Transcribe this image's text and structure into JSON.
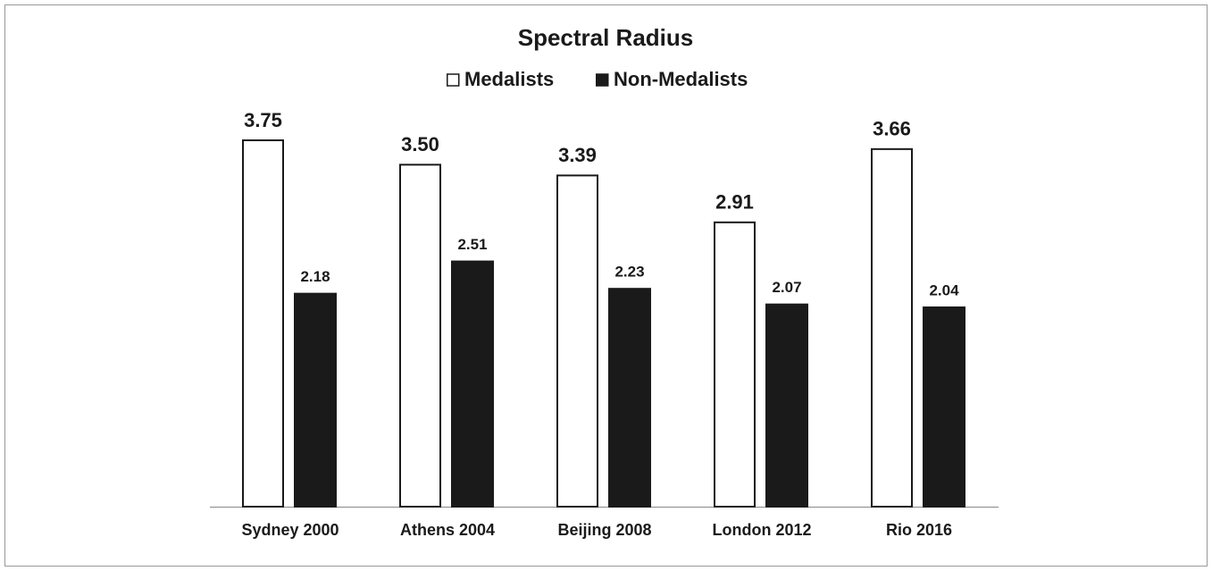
{
  "chart_data": {
    "type": "bar",
    "title": "Spectral Radius",
    "categories": [
      "Sydney 2000",
      "Athens 2004",
      "Beijing 2008",
      "London 2012",
      "Rio 2016"
    ],
    "series": [
      {
        "name": "Medalists",
        "color": "#ffffff",
        "values": [
          3.75,
          3.5,
          3.39,
          2.91,
          3.66
        ],
        "value_labels": [
          "3.75",
          "3.50",
          "3.39",
          "2.91",
          "3.66"
        ]
      },
      {
        "name": "Non-Medalists",
        "color": "#1a1a1a",
        "values": [
          2.18,
          2.51,
          2.23,
          2.07,
          2.04
        ],
        "value_labels": [
          "2.18",
          "2.51",
          "2.23",
          "2.07",
          "2.04"
        ]
      }
    ],
    "legend": "top"
  }
}
